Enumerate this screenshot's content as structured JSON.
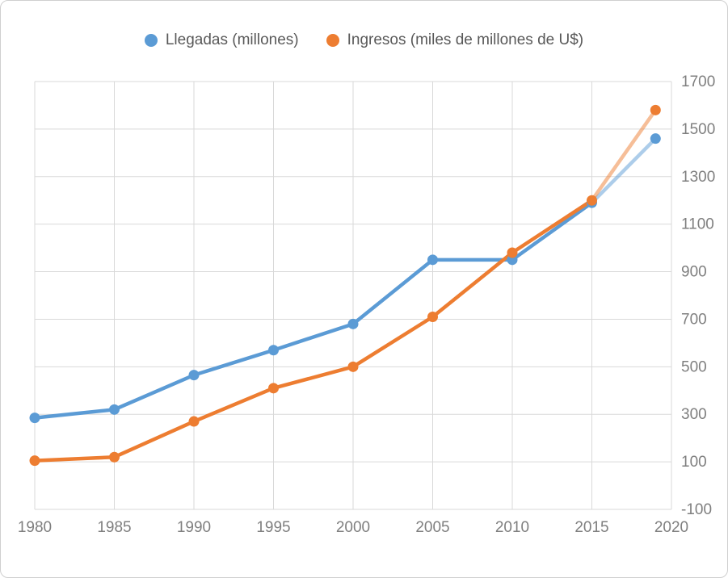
{
  "legend": {
    "items": [
      {
        "label": "Llegadas (millones)",
        "color": "#5B9BD5",
        "icon": "blue-dot-icon"
      },
      {
        "label": "Ingresos (miles de millones de U$)",
        "color": "#ED7D31",
        "icon": "orange-dot-icon"
      }
    ]
  },
  "chart_data": {
    "type": "line",
    "x": [
      1980,
      1985,
      1990,
      1995,
      2000,
      2005,
      2010,
      2015,
      2019
    ],
    "series": [
      {
        "name": "Llegadas (millones)",
        "color": "#5B9BD5",
        "values": [
          285,
          320,
          465,
          570,
          680,
          950,
          950,
          1190,
          1460
        ],
        "light_from_index": 7
      },
      {
        "name": "Ingresos (miles de millones de U$)",
        "color": "#ED7D31",
        "values": [
          105,
          120,
          270,
          410,
          500,
          710,
          980,
          1200,
          1580
        ],
        "light_from_index": 7
      }
    ],
    "x_ticks": [
      1980,
      1985,
      1990,
      1995,
      2000,
      2005,
      2010,
      2015,
      2020
    ],
    "y_ticks": [
      -100,
      100,
      300,
      500,
      700,
      900,
      1100,
      1300,
      1500,
      1700
    ],
    "xlim": [
      1980,
      2020
    ],
    "ylim": [
      -100,
      1700
    ],
    "grid": true,
    "legend_position": "top",
    "grid_color": "#d9d9d9",
    "tick_label_color": "#7f7f7f",
    "title": "",
    "xlabel": "",
    "ylabel": ""
  }
}
